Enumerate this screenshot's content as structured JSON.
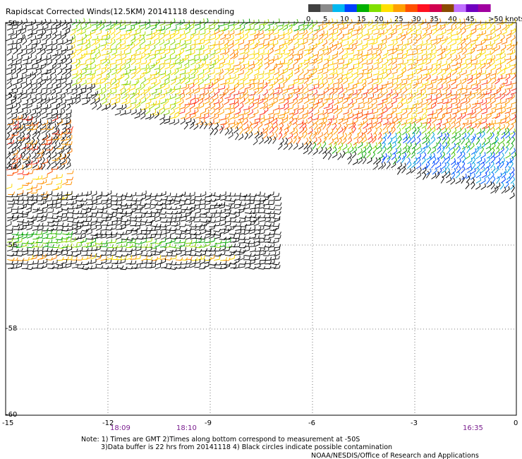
{
  "title": "Rapidscat Corrected Winds(12.5KM) 20141118 descending",
  "legend": {
    "labels": [
      "0",
      "5",
      "10",
      "15",
      "20",
      "25",
      "30",
      "35",
      "40",
      "45",
      ">50 knots"
    ],
    "colors": [
      "#404040",
      "#8a8a8a",
      "#00b8f0",
      "#0040ff",
      "#00b000",
      "#80e000",
      "#ffe000",
      "#ffa000",
      "#ff5000",
      "#ff1020",
      "#d00050",
      "#8a4a00",
      "#c070ff",
      "#7000c0",
      "#a000a0"
    ]
  },
  "axes": {
    "x_labels": [
      "-15",
      "-12",
      "-9",
      "-6",
      "-3",
      "0"
    ],
    "y_labels": [
      "-50",
      "-52",
      "-54",
      "-56",
      "-58",
      "-60"
    ]
  },
  "times": [
    "18:09",
    "18:10",
    "16:35"
  ],
  "notes": {
    "line1": "Note: 1) Times are GMT 2)Times along bottom correspond to measurement at -50S",
    "line2": "3)Data buffer is 22 hrs from 20141118 4) Black circles indicate possible contamination",
    "line3": "NOAA/NESDIS/Office of Research and Applications"
  },
  "map_data": {
    "grid": "dotted",
    "x_range": [
      -15,
      0
    ],
    "y_range": [
      -60,
      -50
    ]
  }
}
